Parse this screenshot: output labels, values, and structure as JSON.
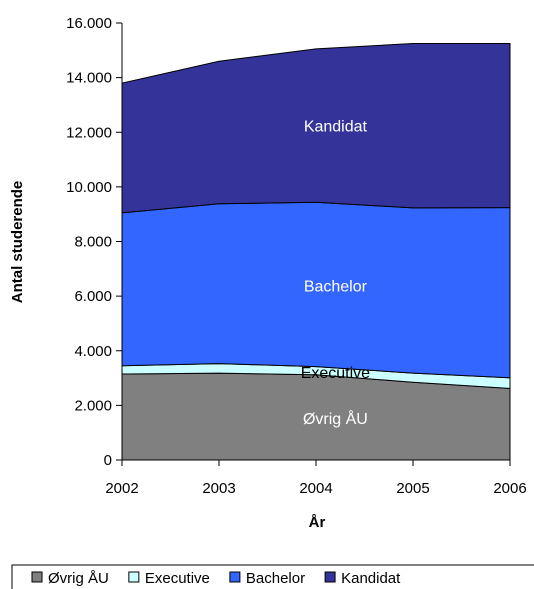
{
  "chart_data": {
    "type": "area",
    "stacked": true,
    "title": "",
    "xlabel": "År",
    "ylabel": "Antal studerende",
    "x": [
      "2002",
      "2003",
      "2004",
      "2005",
      "2006"
    ],
    "ylim": [
      0,
      16000
    ],
    "yticks": [
      "0",
      "2.000",
      "4.000",
      "6.000",
      "8.000",
      "10.000",
      "12.000",
      "14.000",
      "16.000"
    ],
    "grid": false,
    "legend_position": "bottom",
    "series": [
      {
        "name": "Øvrig ÅU",
        "color": "#808080",
        "label_color": "#ffffff",
        "values": [
          3150,
          3180,
          3120,
          2850,
          2620
        ]
      },
      {
        "name": "Executive",
        "color": "#ccffff",
        "label_color": "#000000",
        "values": [
          300,
          350,
          300,
          330,
          390
        ]
      },
      {
        "name": "Bachelor",
        "color": "#3366ff",
        "label_color": "#ffffff",
        "values": [
          5600,
          5850,
          6020,
          6050,
          6230
        ]
      },
      {
        "name": "Kandidat",
        "color": "#333399",
        "label_color": "#ffffff",
        "values": [
          4750,
          5220,
          5610,
          6020,
          6010
        ]
      }
    ]
  }
}
